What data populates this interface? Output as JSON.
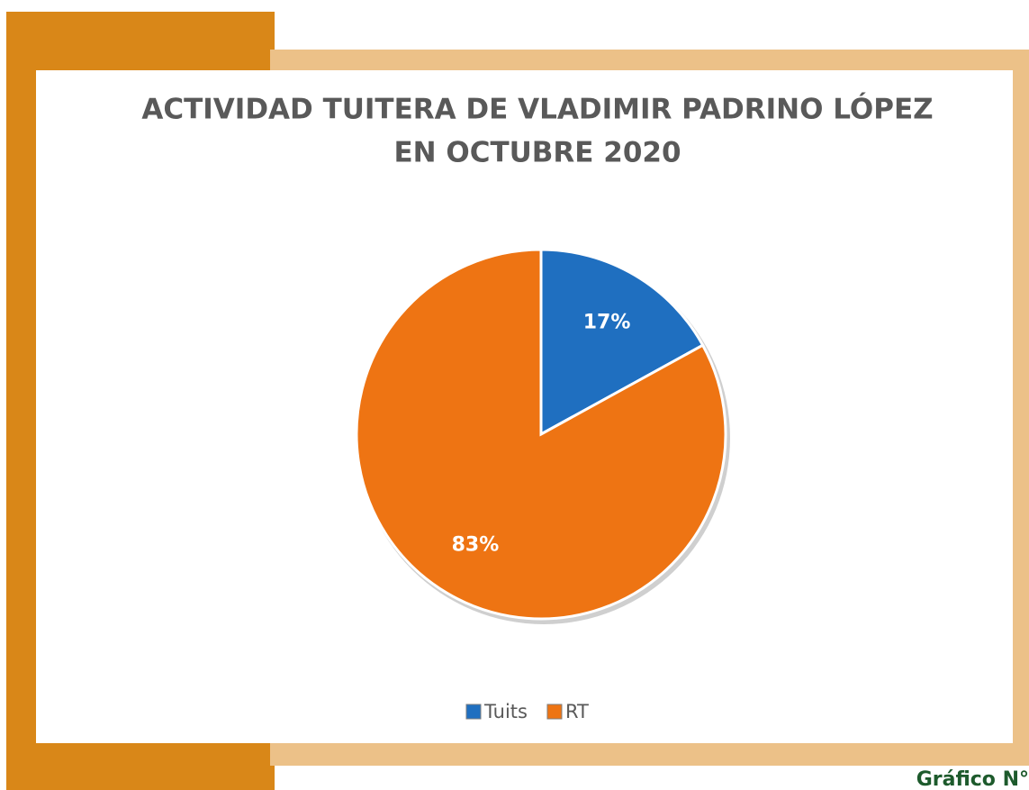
{
  "chart_data": {
    "type": "pie",
    "title": "ACTIVIDAD TUITERA DE VLADIMIR PADRINO LÓPEZ",
    "subtitle": "EN OCTUBRE 2020",
    "categories": [
      "Tuits",
      "RT"
    ],
    "values": [
      17,
      83
    ],
    "value_labels": [
      "17%",
      "83%"
    ],
    "colors": [
      "#1f6fc0",
      "#ee7413"
    ],
    "legend": "bottom"
  },
  "caption": "Gráfico N°"
}
